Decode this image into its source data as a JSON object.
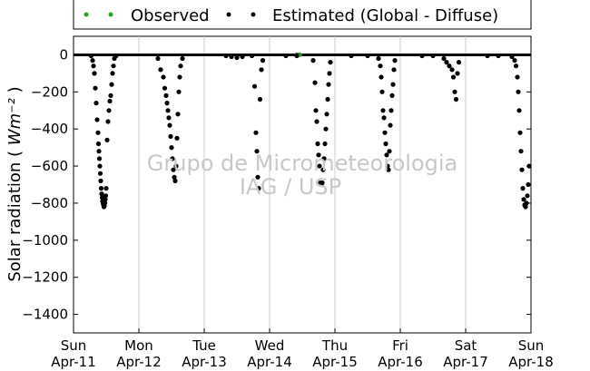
{
  "chart_data": {
    "type": "scatter",
    "title": "",
    "xlabel": "",
    "ylabel": "Solar radiation",
    "ylabel_unit": "Wm⁻²",
    "ylim": [
      -1500,
      100
    ],
    "yticks": [
      0,
      -200,
      -400,
      -600,
      -800,
      -1000,
      -1200,
      -1400
    ],
    "xlim": [
      "2010-04-11",
      "2010-04-18"
    ],
    "xticks": [
      {
        "day": "Sun",
        "date": "Apr-11"
      },
      {
        "day": "Mon",
        "date": "Apr-12"
      },
      {
        "day": "Tue",
        "date": "Apr-13"
      },
      {
        "day": "Wed",
        "date": "Apr-14"
      },
      {
        "day": "Thu",
        "date": "Apr-15"
      },
      {
        "day": "Fri",
        "date": "Apr-16"
      },
      {
        "day": "Sat",
        "date": "Apr-17"
      },
      {
        "day": "Sun",
        "date": "Apr-18"
      }
    ],
    "grid": "vertical",
    "legend": {
      "placement": "top-center"
    },
    "series": [
      {
        "name": "Observed",
        "color": "#2ca02c",
        "points": [
          [
            "2010-04-14 10:00",
            0
          ],
          [
            "2010-04-14 11:00",
            0
          ]
        ]
      },
      {
        "name": "Estimated (Global - Diffuse)",
        "color": "#000000",
        "points": [
          [
            "2010-04-11 06:30",
            -5
          ],
          [
            "2010-04-11 07:00",
            -30
          ],
          [
            "2010-04-11 07:20",
            -60
          ],
          [
            "2010-04-11 07:40",
            -100
          ],
          [
            "2010-04-11 08:00",
            -180
          ],
          [
            "2010-04-11 08:20",
            -260
          ],
          [
            "2010-04-11 08:40",
            -350
          ],
          [
            "2010-04-11 09:00",
            -420
          ],
          [
            "2010-04-11 09:10",
            -480
          ],
          [
            "2010-04-11 09:20",
            -520
          ],
          [
            "2010-04-11 09:30",
            -560
          ],
          [
            "2010-04-11 09:40",
            -600
          ],
          [
            "2010-04-11 09:50",
            -640
          ],
          [
            "2010-04-11 10:00",
            -680
          ],
          [
            "2010-04-11 10:10",
            -720
          ],
          [
            "2010-04-11 10:20",
            -750
          ],
          [
            "2010-04-11 10:30",
            -770
          ],
          [
            "2010-04-11 10:40",
            -790
          ],
          [
            "2010-04-11 10:50",
            -800
          ],
          [
            "2010-04-11 11:00",
            -810
          ],
          [
            "2010-04-11 11:10",
            -820
          ],
          [
            "2010-04-11 11:20",
            -815
          ],
          [
            "2010-04-11 11:30",
            -800
          ],
          [
            "2010-04-11 11:40",
            -780
          ],
          [
            "2010-04-11 11:50",
            -760
          ],
          [
            "2010-04-11 12:00",
            -720
          ],
          [
            "2010-04-11 12:20",
            -460
          ],
          [
            "2010-04-11 12:40",
            -360
          ],
          [
            "2010-04-11 13:00",
            -300
          ],
          [
            "2010-04-11 13:20",
            -250
          ],
          [
            "2010-04-11 13:40",
            -220
          ],
          [
            "2010-04-11 14:00",
            -160
          ],
          [
            "2010-04-11 14:20",
            -100
          ],
          [
            "2010-04-11 14:40",
            -60
          ],
          [
            "2010-04-11 15:00",
            -20
          ],
          [
            "2010-04-11 15:40",
            -5
          ],
          [
            "2010-04-12 07:00",
            -20
          ],
          [
            "2010-04-12 08:00",
            -80
          ],
          [
            "2010-04-12 09:00",
            -120
          ],
          [
            "2010-04-12 09:30",
            -180
          ],
          [
            "2010-04-12 10:00",
            -220
          ],
          [
            "2010-04-12 10:20",
            -260
          ],
          [
            "2010-04-12 10:40",
            -300
          ],
          [
            "2010-04-12 11:00",
            -340
          ],
          [
            "2010-04-12 11:20",
            -380
          ],
          [
            "2010-04-12 11:40",
            -440
          ],
          [
            "2010-04-12 12:00",
            -500
          ],
          [
            "2010-04-12 12:20",
            -560
          ],
          [
            "2010-04-12 12:40",
            -620
          ],
          [
            "2010-04-12 13:00",
            -660
          ],
          [
            "2010-04-12 13:20",
            -680
          ],
          [
            "2010-04-12 13:40",
            -600
          ],
          [
            "2010-04-12 14:00",
            -450
          ],
          [
            "2010-04-12 14:20",
            -320
          ],
          [
            "2010-04-12 14:40",
            -200
          ],
          [
            "2010-04-12 15:00",
            -120
          ],
          [
            "2010-04-12 15:20",
            -60
          ],
          [
            "2010-04-12 16:00",
            -20
          ],
          [
            "2010-04-13 08:00",
            -5
          ],
          [
            "2010-04-13 10:00",
            -10
          ],
          [
            "2010-04-13 12:00",
            -15
          ],
          [
            "2010-04-13 14:00",
            -10
          ],
          [
            "2010-04-13 17:30",
            -5
          ],
          [
            "2010-04-13 18:30",
            -170
          ],
          [
            "2010-04-13 19:00",
            -420
          ],
          [
            "2010-04-13 19:20",
            -520
          ],
          [
            "2010-04-13 19:40",
            -660
          ],
          [
            "2010-04-13 20:00",
            -720
          ],
          [
            "2010-04-13 20:30",
            -240
          ],
          [
            "2010-04-13 21:00",
            -80
          ],
          [
            "2010-04-13 21:30",
            -30
          ],
          [
            "2010-04-14 06:00",
            -5
          ],
          [
            "2010-04-14 10:00",
            -5
          ],
          [
            "2010-04-14 16:00",
            -30
          ],
          [
            "2010-04-14 16:40",
            -150
          ],
          [
            "2010-04-14 17:00",
            -300
          ],
          [
            "2010-04-14 17:20",
            -360
          ],
          [
            "2010-04-14 17:40",
            -480
          ],
          [
            "2010-04-14 18:00",
            -540
          ],
          [
            "2010-04-14 18:20",
            -600
          ],
          [
            "2010-04-14 18:40",
            -690
          ],
          [
            "2010-04-14 19:00",
            -700
          ],
          [
            "2010-04-14 19:20",
            -690
          ],
          [
            "2010-04-14 19:40",
            -620
          ],
          [
            "2010-04-14 20:00",
            -560
          ],
          [
            "2010-04-14 20:20",
            -480
          ],
          [
            "2010-04-14 20:40",
            -400
          ],
          [
            "2010-04-14 21:00",
            -320
          ],
          [
            "2010-04-14 21:20",
            -240
          ],
          [
            "2010-04-14 21:40",
            -160
          ],
          [
            "2010-04-14 22:00",
            -100
          ],
          [
            "2010-04-14 22:20",
            -40
          ],
          [
            "2010-04-15 06:00",
            -5
          ],
          [
            "2010-04-15 12:00",
            -5
          ],
          [
            "2010-04-15 16:00",
            -20
          ],
          [
            "2010-04-15 16:40",
            -60
          ],
          [
            "2010-04-15 17:00",
            -120
          ],
          [
            "2010-04-15 17:20",
            -200
          ],
          [
            "2010-04-15 17:40",
            -300
          ],
          [
            "2010-04-15 18:00",
            -340
          ],
          [
            "2010-04-15 18:20",
            -420
          ],
          [
            "2010-04-15 18:40",
            -480
          ],
          [
            "2010-04-15 19:00",
            -540
          ],
          [
            "2010-04-15 19:20",
            -600
          ],
          [
            "2010-04-15 19:40",
            -620
          ],
          [
            "2010-04-15 20:00",
            -520
          ],
          [
            "2010-04-15 20:20",
            -380
          ],
          [
            "2010-04-15 20:40",
            -300
          ],
          [
            "2010-04-15 21:00",
            -220
          ],
          [
            "2010-04-15 21:20",
            -160
          ],
          [
            "2010-04-15 21:40",
            -80
          ],
          [
            "2010-04-15 22:00",
            -30
          ],
          [
            "2010-04-16 08:00",
            -5
          ],
          [
            "2010-04-16 12:00",
            -5
          ],
          [
            "2010-04-16 16:00",
            -20
          ],
          [
            "2010-04-16 17:00",
            -40
          ],
          [
            "2010-04-16 18:00",
            -60
          ],
          [
            "2010-04-16 19:00",
            -80
          ],
          [
            "2010-04-16 19:30",
            -120
          ],
          [
            "2010-04-16 20:00",
            -200
          ],
          [
            "2010-04-16 20:30",
            -240
          ],
          [
            "2010-04-16 21:00",
            -100
          ],
          [
            "2010-04-16 21:30",
            -40
          ],
          [
            "2010-04-17 08:00",
            -5
          ],
          [
            "2010-04-17 12:00",
            -5
          ],
          [
            "2010-04-17 17:00",
            -10
          ],
          [
            "2010-04-17 18:00",
            -30
          ],
          [
            "2010-04-17 18:30",
            -60
          ],
          [
            "2010-04-17 19:00",
            -120
          ],
          [
            "2010-04-17 19:20",
            -200
          ],
          [
            "2010-04-17 19:40",
            -300
          ],
          [
            "2010-04-17 20:00",
            -420
          ],
          [
            "2010-04-17 20:20",
            -520
          ],
          [
            "2010-04-17 20:40",
            -620
          ],
          [
            "2010-04-17 21:00",
            -720
          ],
          [
            "2010-04-17 21:20",
            -780
          ],
          [
            "2010-04-17 21:40",
            -810
          ],
          [
            "2010-04-17 22:00",
            -820
          ],
          [
            "2010-04-17 22:20",
            -800
          ],
          [
            "2010-04-17 22:40",
            -760
          ],
          [
            "2010-04-17 23:00",
            -700
          ],
          [
            "2010-04-17 23:20",
            -600
          ]
        ]
      }
    ]
  }
}
